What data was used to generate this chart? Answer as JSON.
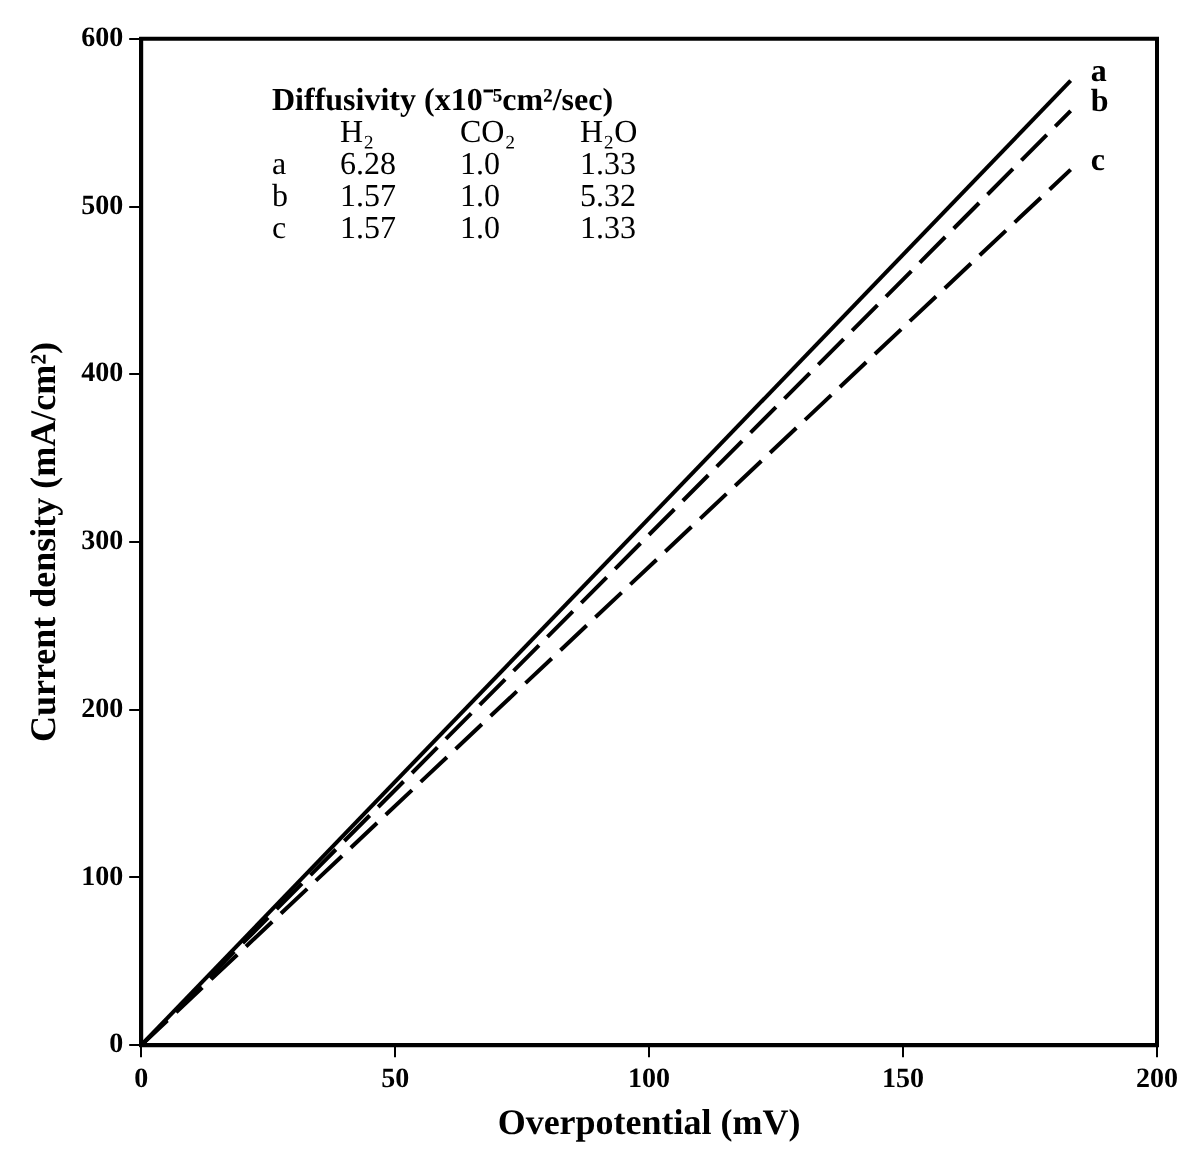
{
  "chart_data": {
    "type": "line",
    "xlabel": "Overpotential (mV)",
    "ylabel": "Current density (mA/cm²)",
    "xlim": [
      0,
      200
    ],
    "xticks": [
      0,
      50,
      100,
      150,
      200
    ],
    "ylim": [
      0,
      600
    ],
    "yticks": [
      0,
      100,
      200,
      300,
      400,
      500,
      600
    ],
    "x": [
      0,
      183
    ],
    "grid": false,
    "legend": false,
    "marker": "none",
    "series": [
      {
        "name": "a",
        "color": "#000000",
        "line_style": "solid",
        "values": [
          0,
          575
        ]
      },
      {
        "name": "b",
        "color": "#000000",
        "line_style": "dashed",
        "values": [
          0,
          557
        ]
      },
      {
        "name": "c",
        "color": "#000000",
        "line_style": "dashed",
        "values": [
          0,
          522
        ]
      }
    ],
    "annotations": [
      "Diffusivity (x10⁻⁵cm²/sec)",
      "H₂",
      "CO₂",
      "H₂O",
      "a",
      "6.28",
      "1.0",
      "1.33",
      "b",
      "1.57",
      "1.0",
      "5.32",
      "c",
      "1.57",
      "1.0",
      "1.33"
    ]
  }
}
